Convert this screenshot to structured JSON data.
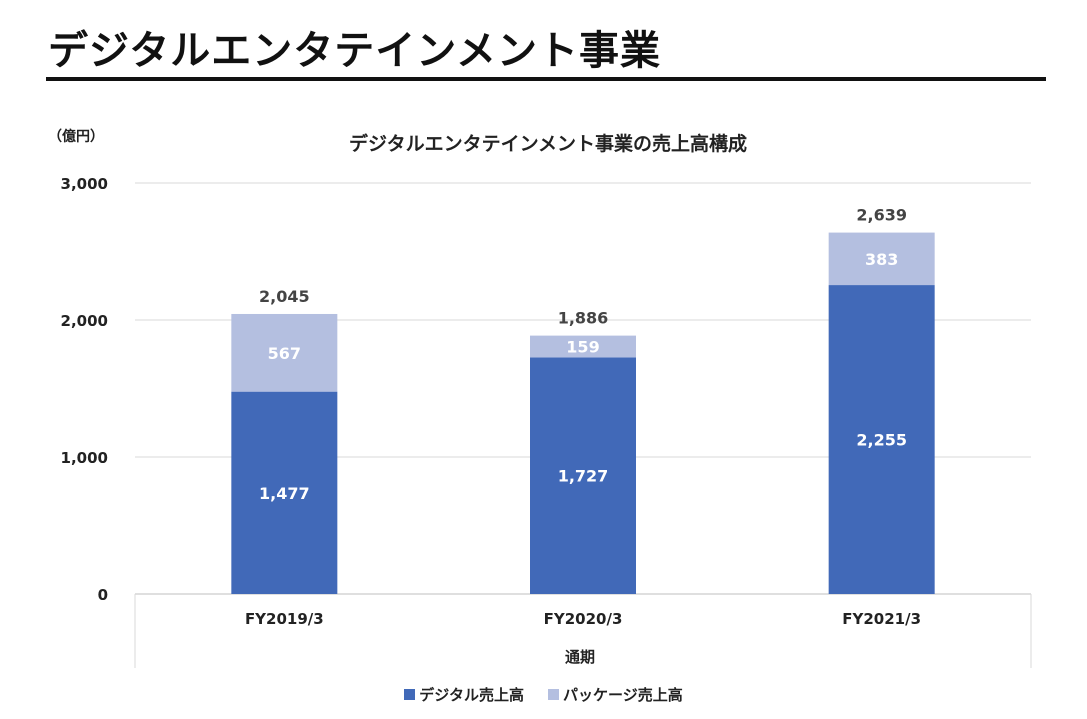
{
  "page": {
    "title": "デジタルエンタテインメント事業"
  },
  "chart_data": {
    "type": "bar",
    "stacked": true,
    "title": "デジタルエンタテインメント事業の売上高構成",
    "unit_label": "（億円）",
    "xlabel": "通期",
    "ylabel": "",
    "categories": [
      "FY2019/3",
      "FY2020/3",
      "FY2021/3"
    ],
    "ylim": [
      0,
      3000
    ],
    "yticks": [
      0,
      1000,
      2000,
      3000
    ],
    "ytick_labels": [
      "0",
      "1,000",
      "2,000",
      "3,000"
    ],
    "grid": true,
    "legend_position": "bottom",
    "series": [
      {
        "name": "デジタル売上高",
        "values": [
          1477,
          1727,
          2255
        ],
        "labels": [
          "1,477",
          "1,727",
          "2,255"
        ],
        "color": "#4169b8"
      },
      {
        "name": "パッケージ売上高",
        "values": [
          567,
          159,
          383
        ],
        "labels": [
          "567",
          "159",
          "383"
        ],
        "color": "#b4bfe0"
      }
    ],
    "totals": [
      2045,
      1886,
      2639
    ],
    "total_labels": [
      "2,045",
      "1,886",
      "2,639"
    ]
  }
}
